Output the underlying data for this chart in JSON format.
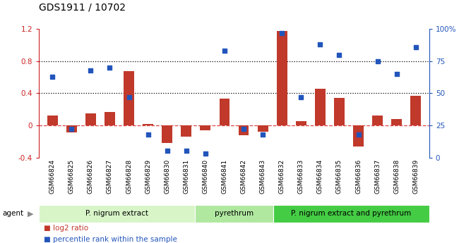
{
  "title": "GDS1911 / 10702",
  "categories": [
    "GSM66824",
    "GSM66825",
    "GSM66826",
    "GSM66827",
    "GSM66828",
    "GSM66829",
    "GSM66830",
    "GSM66831",
    "GSM66840",
    "GSM66841",
    "GSM66842",
    "GSM66843",
    "GSM66832",
    "GSM66833",
    "GSM66834",
    "GSM66835",
    "GSM66836",
    "GSM66837",
    "GSM66838",
    "GSM66839"
  ],
  "log2_ratio": [
    0.12,
    -0.09,
    0.15,
    0.17,
    0.68,
    0.02,
    -0.22,
    -0.14,
    -0.06,
    0.33,
    -0.12,
    -0.08,
    1.18,
    0.05,
    0.46,
    0.34,
    -0.26,
    0.12,
    0.08,
    0.37
  ],
  "percentile": [
    63,
    22,
    68,
    70,
    47,
    18,
    5,
    5,
    3,
    83,
    22,
    18,
    97,
    47,
    88,
    80,
    18,
    75,
    65,
    86
  ],
  "bar_color": "#c0392b",
  "dot_color": "#2255bb",
  "groups": [
    {
      "label": "P. nigrum extract",
      "start": 0,
      "end": 8,
      "color": "#d8f5c8"
    },
    {
      "label": "pyrethrum",
      "start": 8,
      "end": 12,
      "color": "#b0e8a0"
    },
    {
      "label": "P. nigrum extract and pyrethrum",
      "start": 12,
      "end": 20,
      "color": "#44cc44"
    }
  ],
  "ylim_left": [
    -0.4,
    1.2
  ],
  "ylim_right": [
    0,
    100
  ],
  "yticks_left": [
    -0.4,
    0.0,
    0.4,
    0.8,
    1.2
  ],
  "ytick_labels_left": [
    "-0.4",
    "0",
    "0.4",
    "0.8",
    "1.2"
  ],
  "yticks_right": [
    0,
    25,
    50,
    75,
    100
  ],
  "ytick_labels_right": [
    "0",
    "25",
    "50",
    "75",
    "100%"
  ],
  "hlines": [
    0.4,
    0.8
  ],
  "zero_line_color": "#dd4444",
  "bg_color": "#ffffff",
  "plot_bg_color": "#ffffff",
  "tick_label_fontsize": 7.5,
  "title_fontsize": 10,
  "legend_labels": [
    "log2 ratio",
    "percentile rank within the sample"
  ],
  "legend_colors": [
    "#c0392b",
    "#2255bb"
  ],
  "agent_label": "agent",
  "xtick_label_color": "#000000",
  "left_color": "#cc2222",
  "right_color": "#2255bb",
  "gray_band_color": "#c8c8c8",
  "agent_row_color": "#d8d8d8"
}
